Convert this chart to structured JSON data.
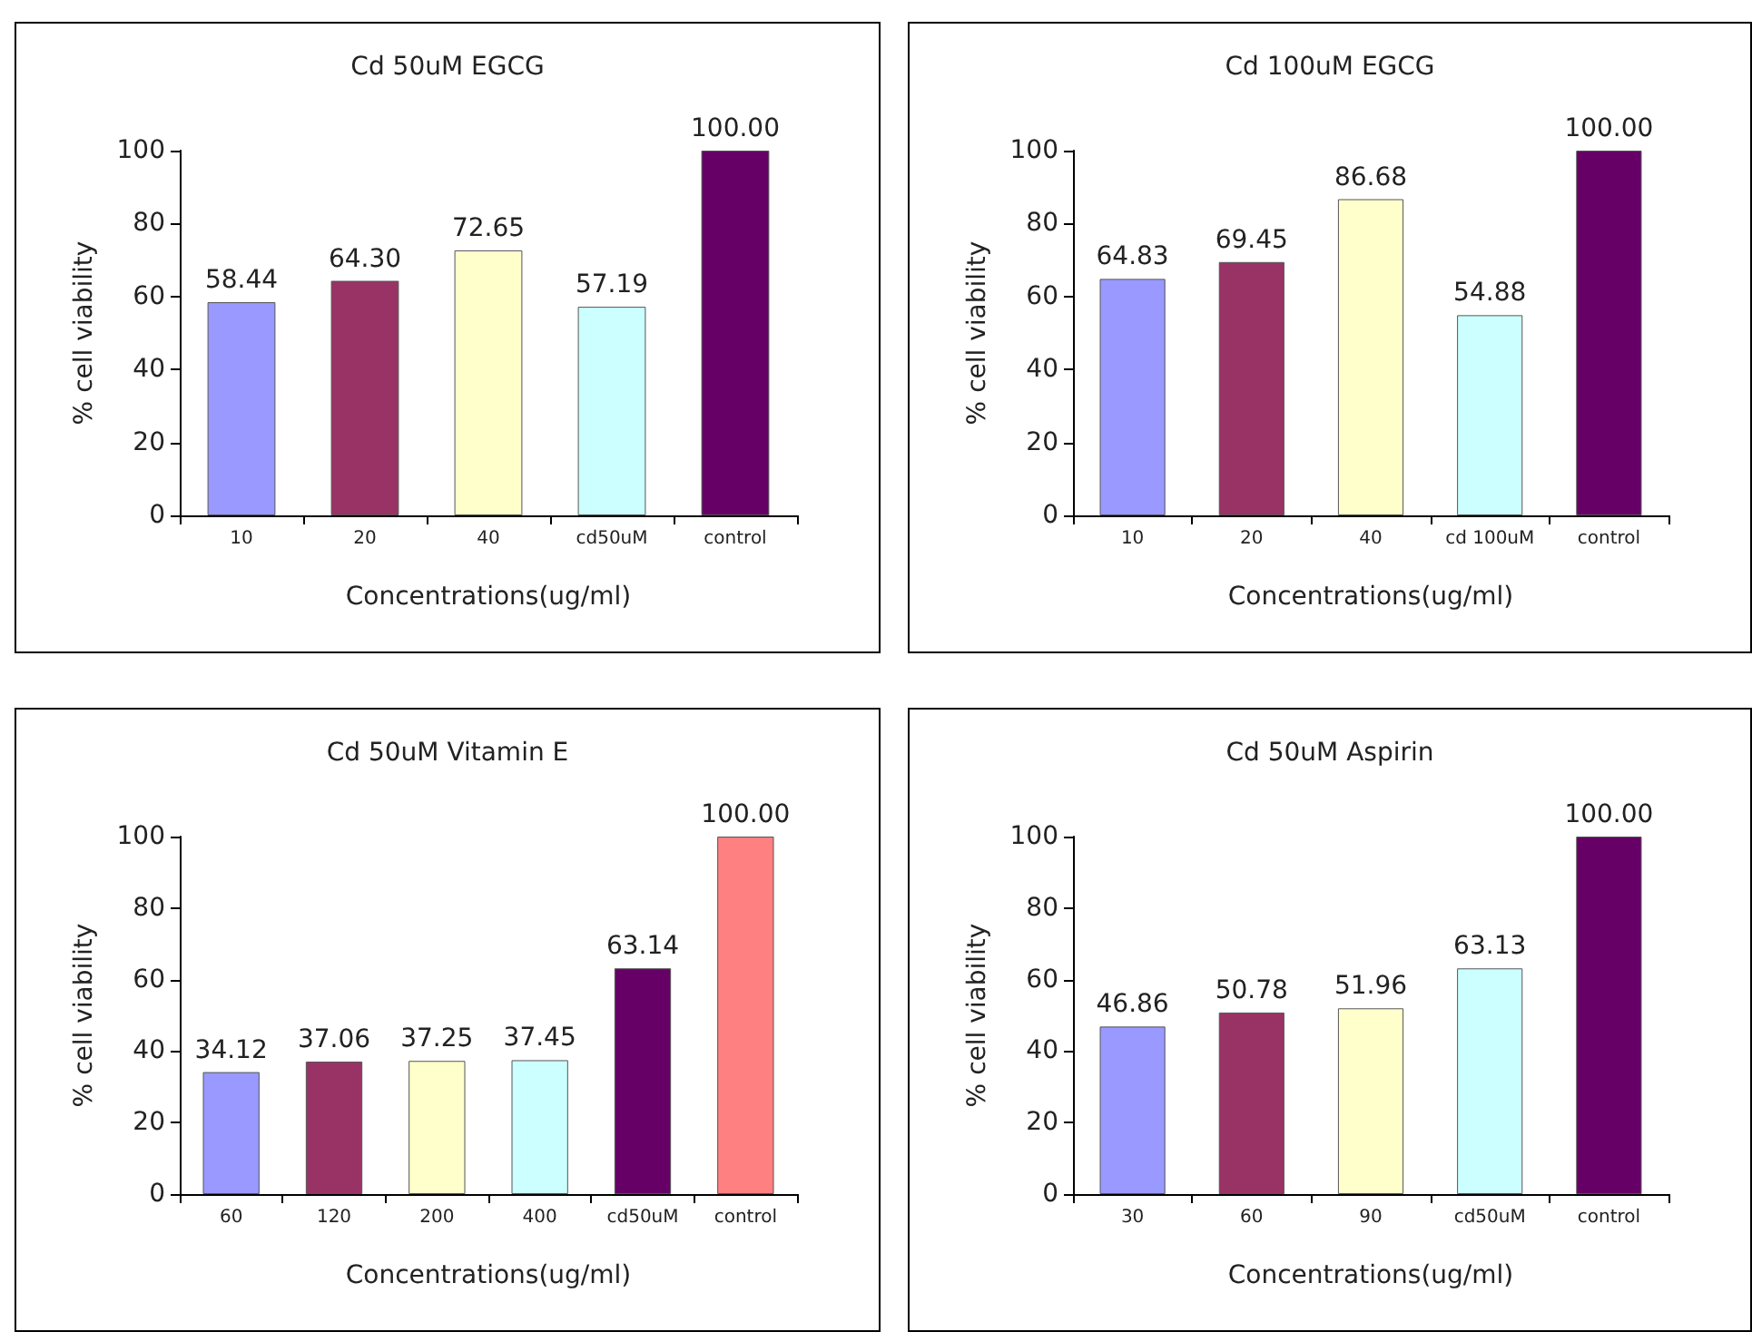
{
  "chart_data": [
    {
      "type": "bar",
      "title": "Cd 50uM EGCG",
      "xlabel": "Concentrations(ug/ml)",
      "ylabel": "% cell viability",
      "categories": [
        "10",
        "20",
        "40",
        "cd50uM",
        "control"
      ],
      "values": [
        58.44,
        64.3,
        72.65,
        57.19,
        100
      ],
      "value_labels": [
        "58.44",
        "64.30",
        "72.65",
        "57.19",
        "100.00"
      ],
      "colors": [
        "#9999ff",
        "#993366",
        "#ffffcc",
        "#ccffff",
        "#660066"
      ],
      "ylim": [
        0,
        100
      ],
      "yticks": [
        0,
        20,
        40,
        60,
        80,
        100
      ]
    },
    {
      "type": "bar",
      "title": "Cd 100uM EGCG",
      "xlabel": "Concentrations(ug/ml)",
      "ylabel": "% cell viability",
      "categories": [
        "10",
        "20",
        "40",
        "cd 100uM",
        "control"
      ],
      "values": [
        64.83,
        69.45,
        86.68,
        54.88,
        100
      ],
      "value_labels": [
        "64.83",
        "69.45",
        "86.68",
        "54.88",
        "100.00"
      ],
      "colors": [
        "#9999ff",
        "#993366",
        "#ffffcc",
        "#ccffff",
        "#660066"
      ],
      "ylim": [
        0,
        100
      ],
      "yticks": [
        0,
        20,
        40,
        60,
        80,
        100
      ]
    },
    {
      "type": "bar",
      "title": "Cd 50uM Vitamin E",
      "xlabel": "Concentrations(ug/ml)",
      "ylabel": "% cell viability",
      "categories": [
        "60",
        "120",
        "200",
        "400",
        "cd50uM",
        "control"
      ],
      "values": [
        34.12,
        37.06,
        37.25,
        37.45,
        63.14,
        100
      ],
      "value_labels": [
        "34.12",
        "37.06",
        "37.25",
        "37.45",
        "63.14",
        "100.00"
      ],
      "colors": [
        "#9999ff",
        "#993366",
        "#ffffcc",
        "#ccffff",
        "#660066",
        "#ff8080"
      ],
      "ylim": [
        0,
        100
      ],
      "yticks": [
        0,
        20,
        40,
        60,
        80,
        100
      ]
    },
    {
      "type": "bar",
      "title": "Cd 50uM Aspirin",
      "xlabel": "Concentrations(ug/ml)",
      "ylabel": "% cell viability",
      "categories": [
        "30",
        "60",
        "90",
        "cd50uM",
        "control"
      ],
      "values": [
        46.86,
        50.78,
        51.96,
        63.13,
        100
      ],
      "value_labels": [
        "46.86",
        "50.78",
        "51.96",
        "63.13",
        "100.00"
      ],
      "colors": [
        "#9999ff",
        "#993366",
        "#ffffcc",
        "#ccffff",
        "#660066"
      ],
      "ylim": [
        0,
        100
      ],
      "yticks": [
        0,
        20,
        40,
        60,
        80,
        100
      ]
    }
  ]
}
